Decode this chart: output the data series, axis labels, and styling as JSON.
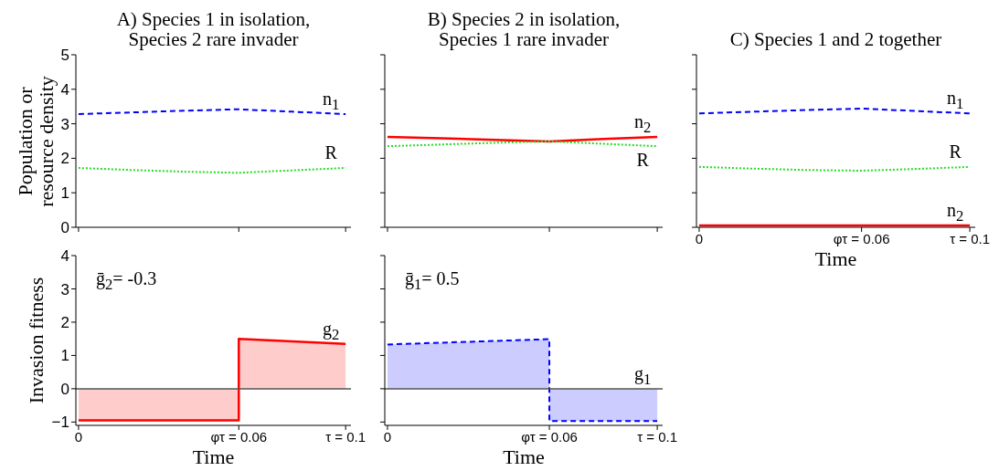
{
  "chart_data": [
    {
      "type": "line",
      "title": "A) Species 1 in isolation, Species 2 rare invader",
      "ylabel": "Population or resource density",
      "tick_labels": "y",
      "x": [
        0,
        0.02,
        0.04,
        0.06,
        0.08,
        0.1
      ],
      "xlim": [
        -0.001,
        0.102
      ],
      "xticks": [
        0,
        0.06,
        0.1
      ],
      "ylim": [
        0,
        5
      ],
      "yticks": [
        0,
        1,
        2,
        3,
        4,
        5
      ],
      "series": [
        {
          "name": "n$_{1}$",
          "color": "#0000ff",
          "line_style": "dashed",
          "values": [
            3.28,
            3.33,
            3.38,
            3.42,
            3.35,
            3.28
          ]
        },
        {
          "name": "R",
          "color": "#22dd22",
          "line_style": "dotted",
          "values": [
            1.72,
            1.66,
            1.61,
            1.58,
            1.65,
            1.72
          ]
        }
      ]
    },
    {
      "type": "line",
      "title": "B) Species 2 in isolation, Species 1 rare invader",
      "tick_labels": false,
      "x": [
        0,
        0.02,
        0.04,
        0.06,
        0.08,
        0.1
      ],
      "xlim": [
        -0.001,
        0.102
      ],
      "xticks": [
        0,
        0.06,
        0.1
      ],
      "ylim": [
        0,
        5
      ],
      "yticks": [
        0,
        1,
        2,
        3,
        4,
        5
      ],
      "series": [
        {
          "name": "n$_{2}$",
          "color": "#ff0000",
          "line_style": "solid",
          "values": [
            2.62,
            2.58,
            2.53,
            2.49,
            2.56,
            2.62
          ]
        },
        {
          "name": "R",
          "color": "#22dd22",
          "line_style": "dotted",
          "values": [
            2.35,
            2.4,
            2.45,
            2.49,
            2.42,
            2.35
          ]
        }
      ]
    },
    {
      "type": "line",
      "title": "C) Species 1 and 2 together",
      "xlabel": "Time",
      "tick_labels": "x",
      "x": [
        0,
        0.02,
        0.04,
        0.06,
        0.08,
        0.1
      ],
      "xlim": [
        -0.001,
        0.102
      ],
      "xticks": [
        {
          "value": 0,
          "label": "0"
        },
        {
          "value": 0.06,
          "label": "φτ = 0.06"
        },
        {
          "value": 0.1,
          "label": "τ = 0.1"
        }
      ],
      "ylim": [
        0,
        5
      ],
      "yticks": [
        0,
        1,
        2,
        3,
        4,
        5
      ],
      "series": [
        {
          "name": "n$_{1}$",
          "color": "#0000ff",
          "line_style": "dashed",
          "values": [
            3.3,
            3.35,
            3.4,
            3.44,
            3.37,
            3.3
          ]
        },
        {
          "name": "R",
          "color": "#22dd22",
          "line_style": "dotted",
          "values": [
            1.75,
            1.7,
            1.66,
            1.64,
            1.69,
            1.75
          ]
        },
        {
          "name": "n$_{2}$",
          "color": "#ff0000",
          "line_style": "solid",
          "values": [
            0.05,
            0.05,
            0.05,
            0.05,
            0.05,
            0.05
          ]
        }
      ]
    },
    {
      "type": "area",
      "xlabel": "Time",
      "ylabel": "Invasion fitness",
      "annotations": [
        "ḡ$_{2}$= -0.3"
      ],
      "xlim": [
        -0.001,
        0.102
      ],
      "xticks": [
        {
          "value": 0,
          "label": "0"
        },
        {
          "value": 0.06,
          "label": "φτ = 0.06"
        },
        {
          "value": 0.1,
          "label": "τ = 0.1"
        }
      ],
      "ylim": [
        -1.1,
        4
      ],
      "yticks": [
        {
          "value": -1,
          "label": "−1"
        },
        0,
        1,
        2,
        3,
        4
      ],
      "ref_lines": [
        {
          "axis": "y",
          "value": 0,
          "color": "#555555"
        }
      ],
      "series": [
        {
          "name": "g$_{2}$",
          "color": "#ff0000",
          "line_style": "solid",
          "x": [
            0,
            0.06,
            0.06,
            0.1
          ],
          "values": [
            -0.95,
            -0.95,
            1.5,
            1.35
          ]
        }
      ]
    },
    {
      "type": "area",
      "xlabel": "Time",
      "annotations": [
        "ḡ$_{1}$= 0.5"
      ],
      "tick_labels": "x",
      "xlim": [
        -0.001,
        0.102
      ],
      "xticks": [
        {
          "value": 0,
          "label": "0"
        },
        {
          "value": 0.06,
          "label": "φτ = 0.06"
        },
        {
          "value": 0.1,
          "label": "τ = 0.1"
        }
      ],
      "ylim": [
        -1.1,
        4
      ],
      "yticks": [
        -1,
        0,
        1,
        2,
        3,
        4
      ],
      "ref_lines": [
        {
          "axis": "y",
          "value": 0,
          "color": "#555555"
        }
      ],
      "series": [
        {
          "name": "g$_{1}$",
          "color": "#0000ff",
          "line_style": "dashed",
          "x": [
            0,
            0.06,
            0.06,
            0.1
          ],
          "values": [
            1.33,
            1.49,
            -0.97,
            -0.97
          ]
        }
      ]
    }
  ]
}
